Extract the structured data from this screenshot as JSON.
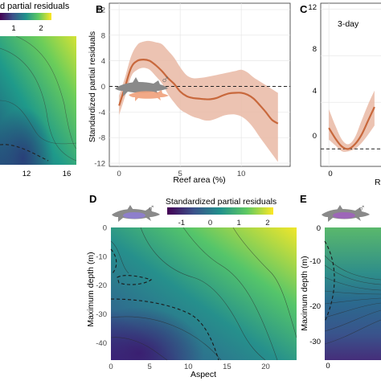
{
  "colors": {
    "curve": "#c8683c",
    "band": "#e9b9a5",
    "viridis": [
      "#440154",
      "#3b528b",
      "#21918c",
      "#5ec962",
      "#fde725"
    ]
  },
  "icons": {
    "shark": "shark-icon",
    "male": "male-symbol-icon"
  },
  "panelA": {
    "legend_title": "d partial residuals",
    "legend_ticks": [
      "1",
      "2"
    ],
    "x_ticks": [
      "12",
      "16"
    ]
  },
  "panelB": {
    "letter": "B",
    "ylabel": "Standardized partial residuals",
    "xlabel": "Reef area (%)",
    "male_symbol": "♂"
  },
  "panelC": {
    "letter": "C",
    "annotation": "3-day",
    "y_ticks": [
      "12",
      "8",
      "4",
      "0"
    ],
    "x_ticks": [
      "0"
    ],
    "xlabel_fragment": "R"
  },
  "panelD": {
    "letter": "D",
    "legend_title": "Standardized partial residuals",
    "legend_ticks": [
      "-1",
      "0",
      "1",
      "2"
    ],
    "ylabel": "Maximum depth (m)",
    "xlabel": "Aspect",
    "x_ticks": [
      "0",
      "5",
      "10",
      "15",
      "20"
    ],
    "y_ticks": [
      "0",
      "-10",
      "-20",
      "-30",
      "-40"
    ],
    "male_symbol": "♂"
  },
  "panelE": {
    "letter": "E",
    "ylabel": "Maximum depth (m)",
    "y_ticks": [
      "0",
      "-10",
      "-20",
      "-30"
    ],
    "x_ticks": [
      "0"
    ],
    "male_symbol": "♂"
  },
  "chart_data": [
    {
      "panel": "B",
      "type": "line",
      "xlabel": "Reef area (%)",
      "ylabel": "Standardized partial residuals",
      "xlim": [
        -0.8,
        14
      ],
      "ylim": [
        -12.5,
        13
      ],
      "x_ticks": [
        0,
        5,
        10
      ],
      "y_ticks": [
        12,
        8,
        4,
        0,
        -4,
        -8,
        -12
      ],
      "reference_line": 0,
      "series": [
        {
          "x": [
            0,
            0.5,
            1,
            1.5,
            2,
            2.5,
            3,
            3.5,
            4,
            4.5,
            5,
            5.5,
            6,
            6.5,
            7,
            7.5,
            8,
            8.5,
            9,
            9.5,
            10,
            10.5,
            11,
            11.5,
            12,
            12.5,
            13
          ],
          "y": [
            -3,
            0,
            3,
            4,
            4.2,
            4,
            3.3,
            2.4,
            1.3,
            0.4,
            -0.8,
            -1.5,
            -1.8,
            -1.9,
            -2,
            -2,
            -1.8,
            -1.4,
            -1.1,
            -1.0,
            -1.0,
            -1.3,
            -1.9,
            -2.9,
            -4.0,
            -5.2,
            -5.8
          ],
          "lower": [
            -4.5,
            -1.5,
            1.6,
            2.6,
            2.9,
            2.6,
            1.6,
            0.5,
            -1.2,
            -2.5,
            -3.6,
            -4.2,
            -4.7,
            -5.0,
            -5.3,
            -5.3,
            -5.0,
            -4.6,
            -4.4,
            -4.4,
            -4.7,
            -5.4,
            -6.5,
            -7.9,
            -9.2,
            -10.5,
            -11.8
          ],
          "upper": [
            -1.5,
            1.5,
            4.8,
            6.5,
            7.0,
            7.1,
            6.9,
            6.6,
            5.6,
            4.5,
            3.0,
            1.8,
            1.3,
            1.3,
            1.4,
            1.6,
            1.8,
            2.0,
            2.2,
            2.4,
            2.6,
            2.2,
            1.4,
            0.8,
            0.2,
            -0.4,
            -1.0
          ]
        }
      ]
    },
    {
      "panel": "C",
      "type": "line",
      "ylim": [
        -1.5,
        12.5
      ],
      "y_ticks": [
        12,
        8,
        4,
        0
      ],
      "x_ticks": [
        0
      ],
      "reference_line": 0,
      "series": [
        {
          "x": [
            0,
            0.2,
            0.4,
            0.6,
            0.8,
            1.0,
            1.2,
            1.4
          ],
          "y": [
            1.8,
            0.9,
            0.2,
            0,
            0.4,
            1.2,
            2.4,
            3.6
          ],
          "lower": [
            0.8,
            0.3,
            -0.2,
            -0.2,
            0.0,
            0.5,
            1.2,
            2.0
          ],
          "upper": [
            3.4,
            2.0,
            0.8,
            0.4,
            1.0,
            2.4,
            3.8,
            5.0
          ]
        }
      ]
    },
    {
      "panel": "D",
      "type": "heatmap",
      "xlabel": "Aspect",
      "ylabel": "Maximum depth (m)",
      "xlim": [
        0,
        24
      ],
      "ylim": [
        -46,
        0
      ],
      "x_ticks": [
        0,
        5,
        10,
        15,
        20
      ],
      "y_ticks": [
        0,
        -10,
        -20,
        -30,
        -40
      ],
      "colorbar": {
        "min": -1.5,
        "max": 2.2,
        "ticks": [
          -1,
          0,
          1,
          2
        ]
      }
    }
  ]
}
